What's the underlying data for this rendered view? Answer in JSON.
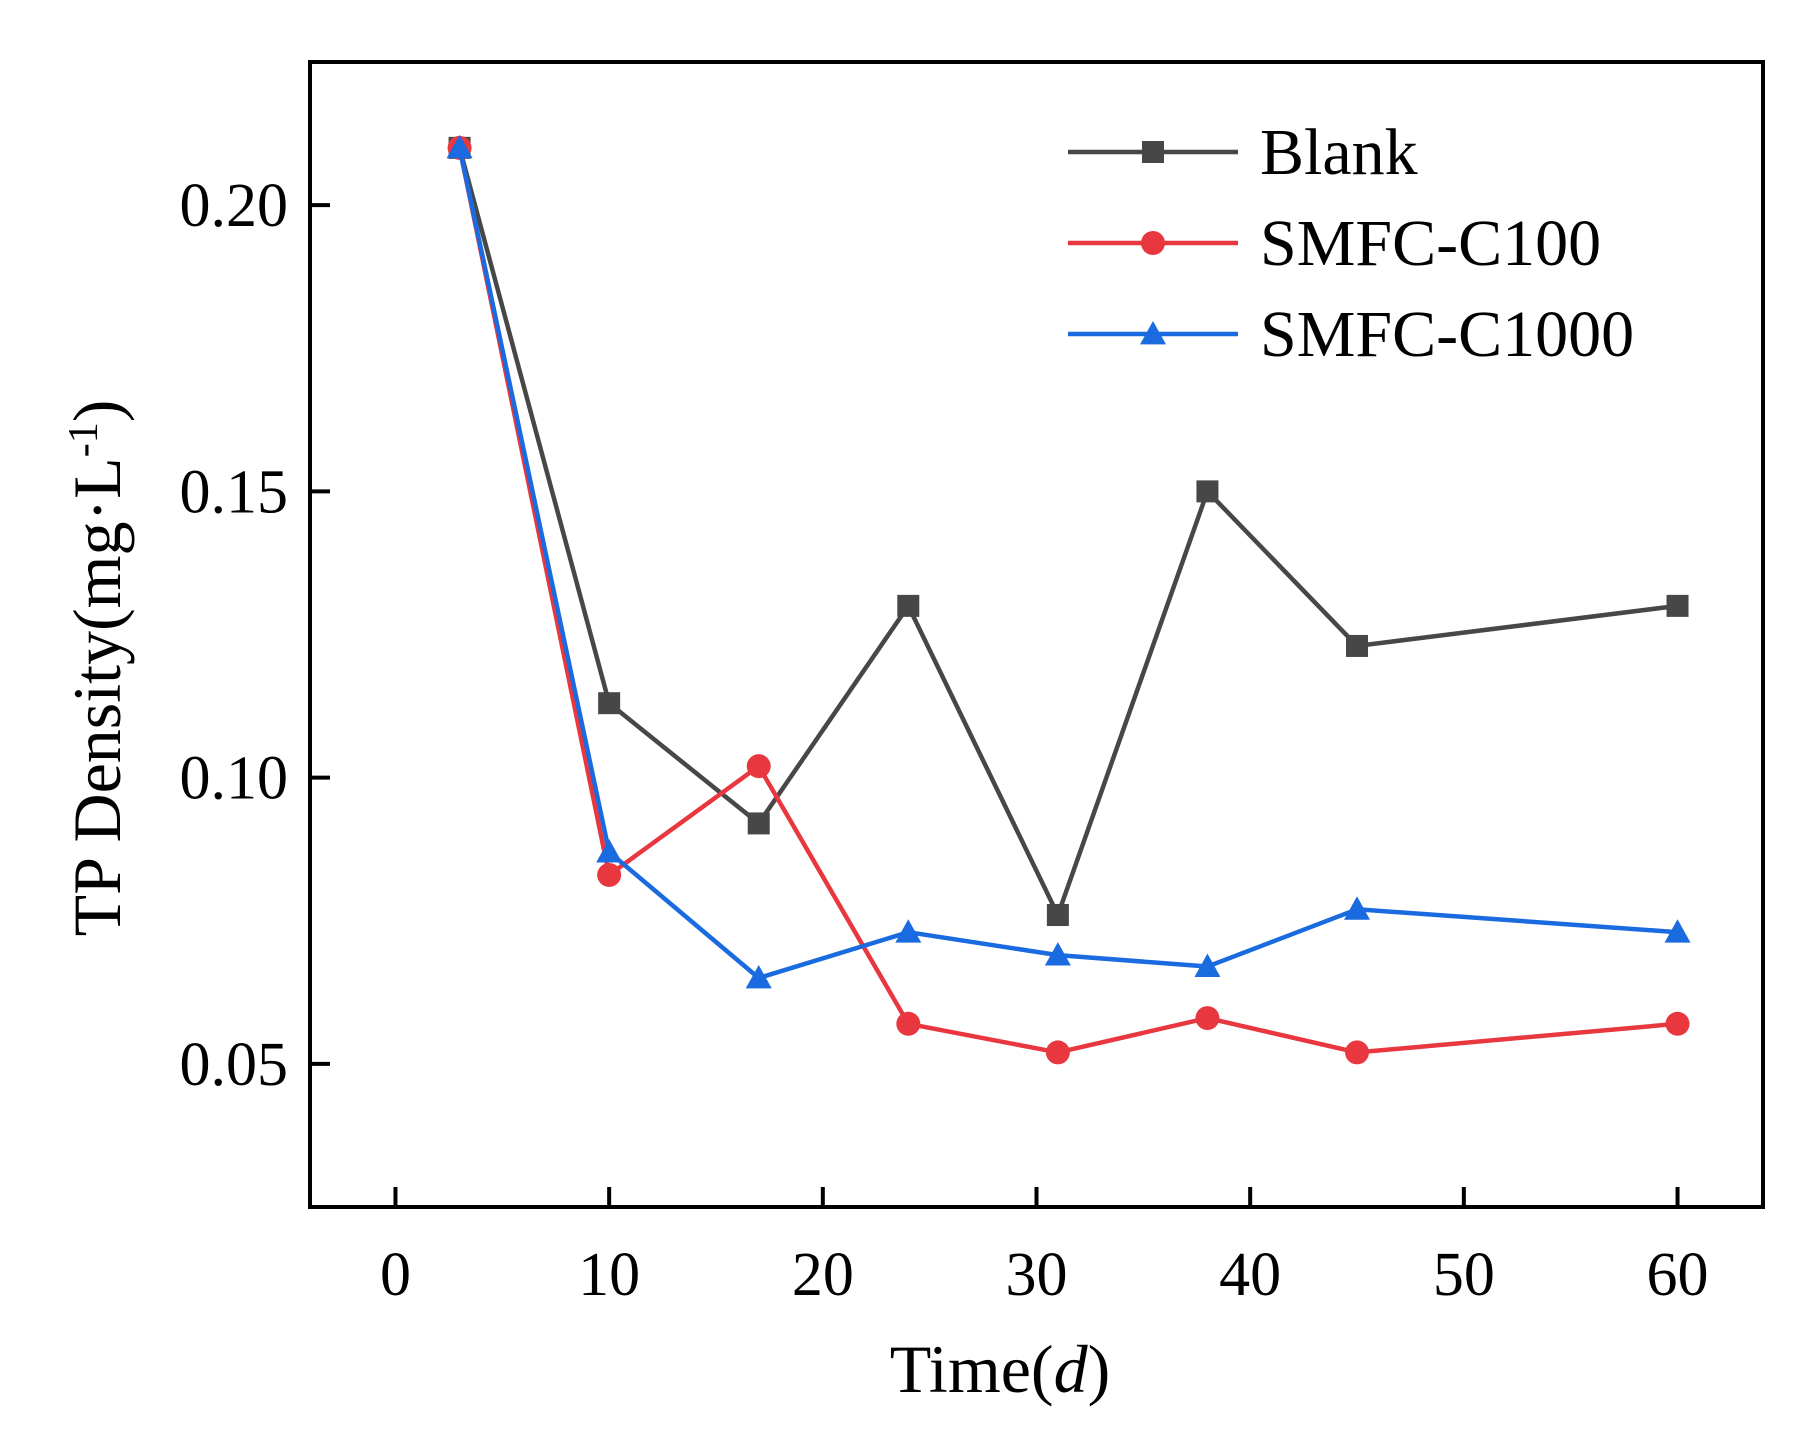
{
  "chart_data": {
    "type": "line",
    "title": "",
    "xlabel": "Time",
    "xlabel_italic_unit": "d",
    "ylabel": "TP Density(mg·L",
    "ylabel_superscript": "-1",
    "ylabel_suffix": ")",
    "xlim": [
      -4,
      64
    ],
    "ylim": [
      0.025,
      0.225
    ],
    "xticks": [
      0,
      10,
      20,
      30,
      40,
      50,
      60
    ],
    "xtick_labels": [
      "0",
      "10",
      "20",
      "30",
      "40",
      "50",
      "60"
    ],
    "yticks": [
      0.05,
      0.1,
      0.15,
      0.2
    ],
    "ytick_labels": [
      "0.05",
      "0.10",
      "0.15",
      "0.20"
    ],
    "grid": false,
    "legend_position": "top-right",
    "x": [
      3,
      10,
      17,
      24,
      31,
      38,
      45,
      60
    ],
    "series": [
      {
        "name": "Blank",
        "color": "#474747",
        "marker": "square",
        "values": [
          0.21,
          0.113,
          0.092,
          0.13,
          0.076,
          0.15,
          0.123,
          0.13
        ]
      },
      {
        "name": "SMFC-C100",
        "color": "#e8373e",
        "marker": "circle",
        "values": [
          0.21,
          0.083,
          0.102,
          0.057,
          0.052,
          0.058,
          0.052,
          0.057
        ]
      },
      {
        "name": "SMFC-C1000",
        "color": "#1a6ae0",
        "marker": "triangle",
        "values": [
          0.21,
          0.087,
          0.065,
          0.073,
          0.069,
          0.067,
          0.077,
          0.073
        ]
      }
    ]
  }
}
